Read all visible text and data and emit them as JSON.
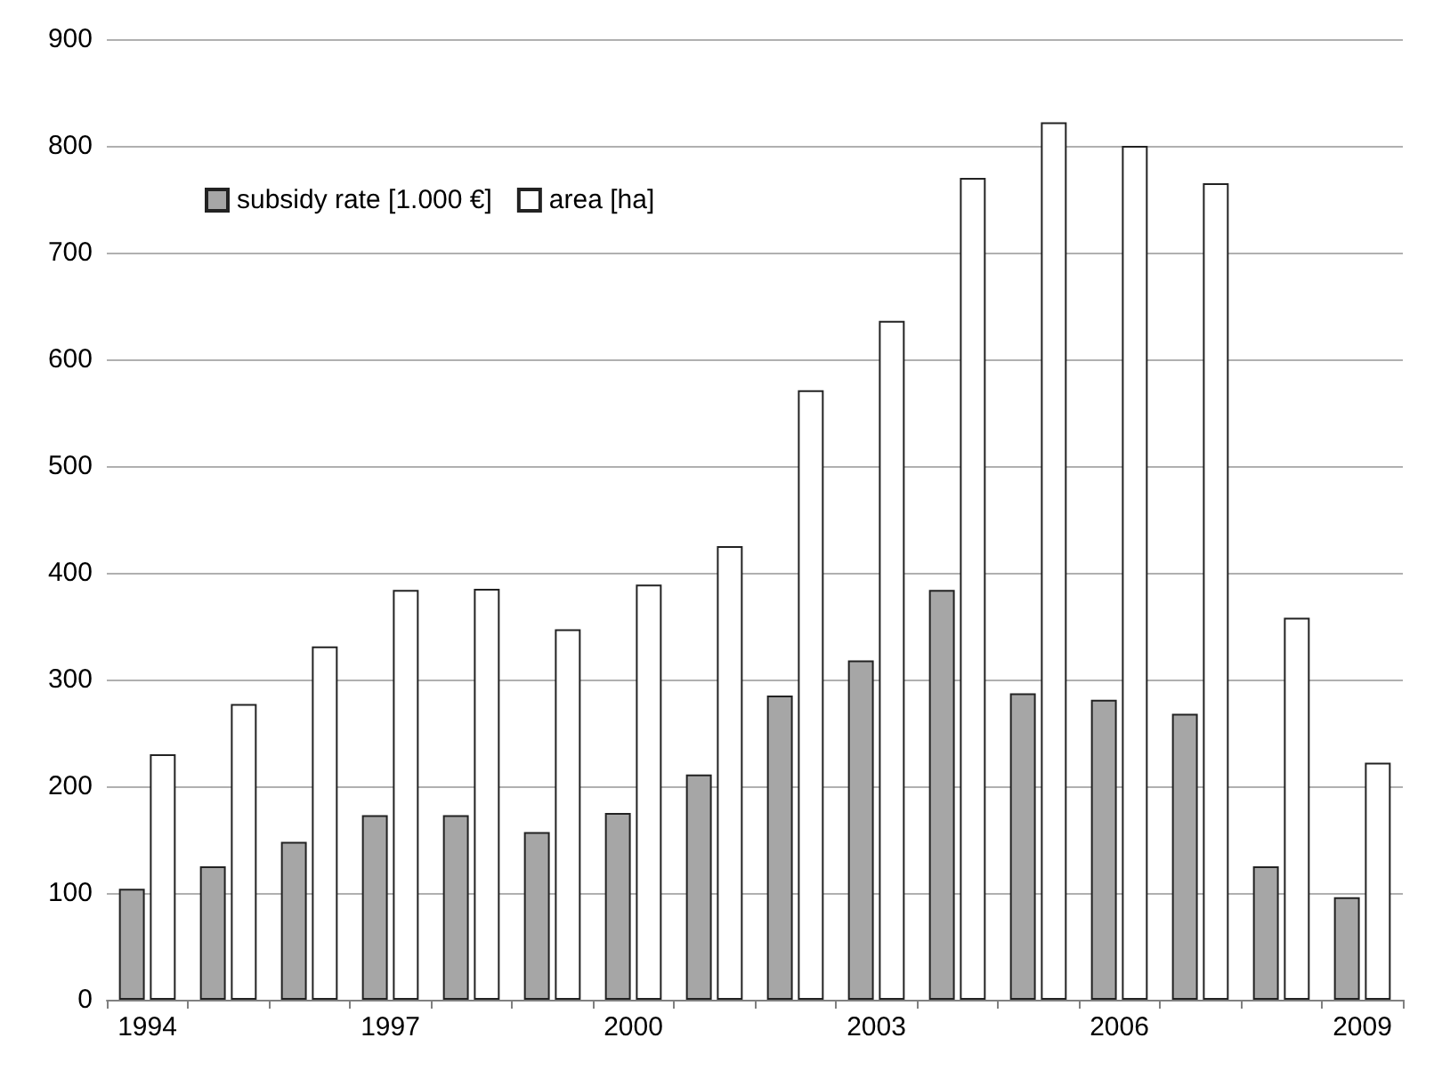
{
  "chart_data": {
    "type": "bar",
    "categories": [
      "1994",
      null,
      null,
      "1997",
      null,
      null,
      "2000",
      null,
      null,
      "2003",
      null,
      null,
      "2006",
      null,
      null,
      "2009"
    ],
    "series": [
      {
        "name": "subsidy rate [1.000 €]",
        "color": "#a6a6a6",
        "values": [
          104,
          125,
          148,
          173,
          173,
          157,
          175,
          211,
          285,
          318,
          384,
          287,
          281,
          268,
          125,
          96
        ]
      },
      {
        "name": "area [ha]",
        "color": "#ffffff",
        "values": [
          230,
          277,
          331,
          384,
          385,
          347,
          389,
          425,
          571,
          636,
          770,
          822,
          800,
          765,
          358,
          222
        ]
      }
    ],
    "ylim": [
      0,
      900
    ],
    "yticks": [
      0,
      100,
      200,
      300,
      400,
      500,
      600,
      700,
      800,
      900
    ],
    "grid": "y",
    "legend": "top left"
  }
}
